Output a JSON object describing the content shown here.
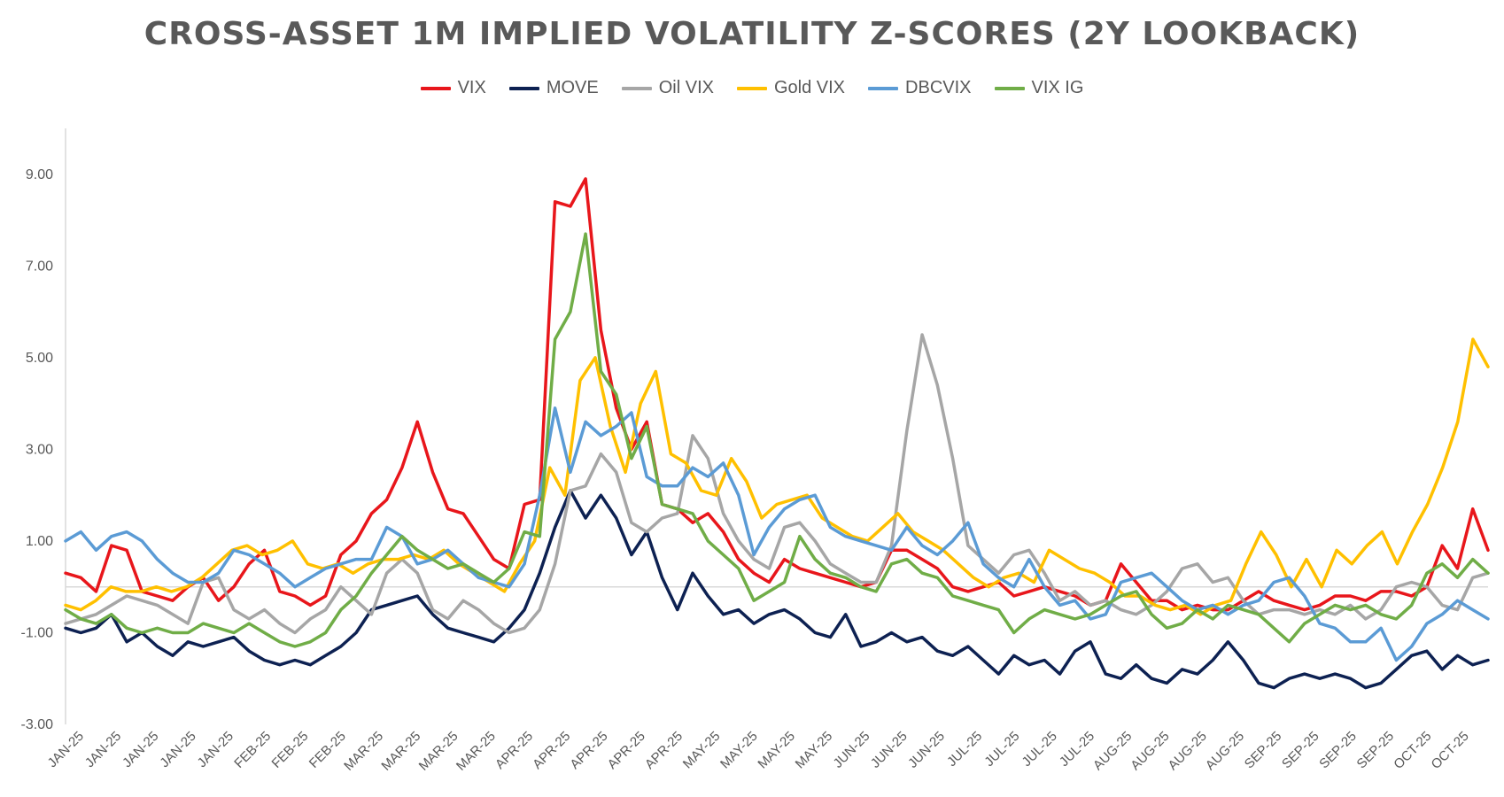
{
  "chart_data": {
    "type": "line",
    "title": "CROSS-ASSET 1M IMPLIED VOLATILITY Z-SCORES (2Y LOOKBACK)",
    "ylim": [
      -3,
      10
    ],
    "y_ticks": [
      "9.00",
      "7.00",
      "5.00",
      "3.00",
      "1.00",
      "-1.00",
      "-3.00"
    ],
    "y_tick_values": [
      9,
      7,
      5,
      3,
      1,
      -1,
      -3
    ],
    "grid": false,
    "zero_line": true,
    "legend_position": "top",
    "x_tick_labels": [
      "JAN-25",
      "JAN-25",
      "JAN-25",
      "JAN-25",
      "JAN-25",
      "FEB-25",
      "FEB-25",
      "FEB-25",
      "MAR-25",
      "MAR-25",
      "MAR-25",
      "MAR-25",
      "APR-25",
      "APR-25",
      "APR-25",
      "APR-25",
      "APR-25",
      "MAY-25",
      "MAY-25",
      "MAY-25",
      "MAY-25",
      "JUN-25",
      "JUN-25",
      "JUN-25",
      "JUL-25",
      "JUL-25",
      "JUL-25",
      "JUL-25",
      "AUG-25",
      "AUG-25",
      "AUG-25",
      "AUG-25",
      "SEP-25",
      "SEP-25",
      "SEP-25",
      "SEP-25",
      "OCT-25",
      "OCT-25"
    ],
    "series": [
      {
        "name": "VIX",
        "color": "#e8161b",
        "values": [
          0.3,
          0.2,
          -0.1,
          0.9,
          0.8,
          -0.1,
          -0.2,
          -0.3,
          0.0,
          0.2,
          -0.3,
          0.0,
          0.5,
          0.8,
          -0.1,
          -0.2,
          -0.4,
          -0.2,
          0.7,
          1.0,
          1.6,
          1.9,
          2.6,
          3.6,
          2.5,
          1.7,
          1.6,
          1.1,
          0.6,
          0.4,
          1.8,
          1.9,
          8.4,
          8.3,
          8.9,
          5.6,
          3.9,
          3.0,
          3.6,
          1.8,
          1.7,
          1.4,
          1.6,
          1.2,
          0.6,
          0.3,
          0.1,
          0.6,
          0.4,
          0.3,
          0.2,
          0.1,
          0.0,
          0.1,
          0.8,
          0.8,
          0.6,
          0.4,
          0.0,
          -0.1,
          0.0,
          0.1,
          -0.2,
          -0.1,
          0.0,
          -0.1,
          -0.2,
          -0.4,
          -0.3,
          0.5,
          0.1,
          -0.3,
          -0.3,
          -0.5,
          -0.4,
          -0.5,
          -0.5,
          -0.3,
          -0.1,
          -0.3,
          -0.4,
          -0.5,
          -0.4,
          -0.2,
          -0.2,
          -0.3,
          -0.1,
          -0.1,
          -0.2,
          0.0,
          0.9,
          0.4,
          1.7,
          0.8
        ]
      },
      {
        "name": "MOVE",
        "color": "#0d2152",
        "values": [
          -0.9,
          -1.0,
          -0.9,
          -0.6,
          -1.2,
          -1.0,
          -1.3,
          -1.5,
          -1.2,
          -1.3,
          -1.2,
          -1.1,
          -1.4,
          -1.6,
          -1.7,
          -1.6,
          -1.7,
          -1.5,
          -1.3,
          -1.0,
          -0.5,
          -0.4,
          -0.3,
          -0.2,
          -0.6,
          -0.9,
          -1.0,
          -1.1,
          -1.2,
          -0.9,
          -0.5,
          0.3,
          1.3,
          2.1,
          1.5,
          2.0,
          1.5,
          0.7,
          1.2,
          0.2,
          -0.5,
          0.3,
          -0.2,
          -0.6,
          -0.5,
          -0.8,
          -0.6,
          -0.5,
          -0.7,
          -1.0,
          -1.1,
          -0.6,
          -1.3,
          -1.2,
          -1.0,
          -1.2,
          -1.1,
          -1.4,
          -1.5,
          -1.3,
          -1.6,
          -1.9,
          -1.5,
          -1.7,
          -1.6,
          -1.9,
          -1.4,
          -1.2,
          -1.9,
          -2.0,
          -1.7,
          -2.0,
          -2.1,
          -1.8,
          -1.9,
          -1.6,
          -1.2,
          -1.6,
          -2.1,
          -2.2,
          -2.0,
          -1.9,
          -2.0,
          -1.9,
          -2.0,
          -2.2,
          -2.1,
          -1.8,
          -1.5,
          -1.4,
          -1.8,
          -1.5,
          -1.7,
          -1.6
        ]
      },
      {
        "name": "Oil VIX",
        "color": "#a6a6a6",
        "values": [
          -0.8,
          -0.7,
          -0.6,
          -0.4,
          -0.2,
          -0.3,
          -0.4,
          -0.6,
          -0.8,
          0.1,
          0.2,
          -0.5,
          -0.7,
          -0.5,
          -0.8,
          -1.0,
          -0.7,
          -0.5,
          0.0,
          -0.3,
          -0.6,
          0.3,
          0.6,
          0.3,
          -0.5,
          -0.7,
          -0.3,
          -0.5,
          -0.8,
          -1.0,
          -0.9,
          -0.5,
          0.5,
          2.1,
          2.2,
          2.9,
          2.5,
          1.4,
          1.2,
          1.5,
          1.6,
          3.3,
          2.8,
          1.6,
          1.0,
          0.6,
          0.4,
          1.3,
          1.4,
          1.0,
          0.5,
          0.3,
          0.1,
          0.1,
          0.9,
          3.4,
          5.5,
          4.4,
          2.8,
          0.9,
          0.6,
          0.3,
          0.7,
          0.8,
          0.3,
          -0.3,
          -0.1,
          -0.4,
          -0.3,
          -0.5,
          -0.6,
          -0.4,
          -0.1,
          0.4,
          0.5,
          0.1,
          0.2,
          -0.3,
          -0.6,
          -0.5,
          -0.5,
          -0.6,
          -0.5,
          -0.6,
          -0.4,
          -0.7,
          -0.5,
          0.0,
          0.1,
          0.0,
          -0.4,
          -0.5,
          0.2,
          0.3
        ]
      },
      {
        "name": "Gold VIX",
        "color": "#ffc000",
        "values": [
          -0.4,
          -0.5,
          -0.3,
          0.0,
          -0.1,
          -0.1,
          0.0,
          -0.1,
          0.0,
          0.2,
          0.5,
          0.8,
          0.9,
          0.7,
          0.8,
          1.0,
          0.5,
          0.4,
          0.5,
          0.3,
          0.5,
          0.6,
          0.6,
          0.7,
          0.6,
          0.8,
          0.5,
          0.3,
          0.1,
          -0.1,
          0.5,
          1.0,
          2.6,
          2.0,
          4.5,
          5.0,
          3.5,
          2.5,
          4.0,
          4.7,
          2.9,
          2.7,
          2.1,
          2.0,
          2.8,
          2.3,
          1.5,
          1.8,
          1.9,
          2.0,
          1.5,
          1.3,
          1.1,
          1.0,
          1.3,
          1.6,
          1.2,
          1.0,
          0.8,
          0.5,
          0.2,
          0.0,
          0.2,
          0.3,
          0.1,
          0.8,
          0.6,
          0.4,
          0.3,
          0.1,
          -0.2,
          -0.2,
          -0.4,
          -0.5,
          -0.4,
          -0.6,
          -0.4,
          -0.3,
          0.5,
          1.2,
          0.7,
          0.0,
          0.6,
          0.0,
          0.8,
          0.5,
          0.9,
          1.2,
          0.5,
          1.2,
          1.8,
          2.6,
          3.6,
          5.4,
          4.8
        ]
      },
      {
        "name": "DBCVIX",
        "color": "#5b9bd5",
        "values": [
          1.0,
          1.2,
          0.8,
          1.1,
          1.2,
          1.0,
          0.6,
          0.3,
          0.1,
          0.1,
          0.3,
          0.8,
          0.7,
          0.5,
          0.3,
          0.0,
          0.2,
          0.4,
          0.5,
          0.6,
          0.6,
          1.3,
          1.1,
          0.5,
          0.6,
          0.8,
          0.5,
          0.2,
          0.1,
          0.0,
          0.5,
          2.0,
          3.9,
          2.5,
          3.6,
          3.3,
          3.5,
          3.8,
          2.4,
          2.2,
          2.2,
          2.6,
          2.4,
          2.7,
          2.0,
          0.7,
          1.3,
          1.7,
          1.9,
          2.0,
          1.3,
          1.1,
          1.0,
          0.9,
          0.8,
          1.3,
          0.9,
          0.7,
          1.0,
          1.4,
          0.5,
          0.2,
          0.0,
          0.6,
          0.0,
          -0.4,
          -0.3,
          -0.7,
          -0.6,
          0.1,
          0.2,
          0.3,
          0.0,
          -0.3,
          -0.5,
          -0.4,
          -0.6,
          -0.4,
          -0.3,
          0.1,
          0.2,
          -0.2,
          -0.8,
          -0.9,
          -1.2,
          -1.2,
          -0.9,
          -1.6,
          -1.3,
          -0.8,
          -0.6,
          -0.3,
          -0.5,
          -0.7
        ]
      },
      {
        "name": "VIX IG",
        "color": "#70ad47",
        "values": [
          -0.5,
          -0.7,
          -0.8,
          -0.6,
          -0.9,
          -1.0,
          -0.9,
          -1.0,
          -1.0,
          -0.8,
          -0.9,
          -1.0,
          -0.8,
          -1.0,
          -1.2,
          -1.3,
          -1.2,
          -1.0,
          -0.5,
          -0.2,
          0.3,
          0.7,
          1.1,
          0.8,
          0.6,
          0.4,
          0.5,
          0.3,
          0.1,
          0.4,
          1.2,
          1.1,
          5.4,
          6.0,
          7.7,
          4.7,
          4.2,
          2.8,
          3.5,
          1.8,
          1.7,
          1.6,
          1.0,
          0.7,
          0.4,
          -0.3,
          -0.1,
          0.1,
          1.1,
          0.6,
          0.3,
          0.2,
          0.0,
          -0.1,
          0.5,
          0.6,
          0.3,
          0.2,
          -0.2,
          -0.3,
          -0.4,
          -0.5,
          -1.0,
          -0.7,
          -0.5,
          -0.6,
          -0.7,
          -0.6,
          -0.4,
          -0.2,
          -0.1,
          -0.6,
          -0.9,
          -0.8,
          -0.5,
          -0.7,
          -0.4,
          -0.5,
          -0.6,
          -0.9,
          -1.2,
          -0.8,
          -0.6,
          -0.4,
          -0.5,
          -0.4,
          -0.6,
          -0.7,
          -0.4,
          0.3,
          0.5,
          0.2,
          0.6,
          0.3
        ]
      }
    ]
  }
}
